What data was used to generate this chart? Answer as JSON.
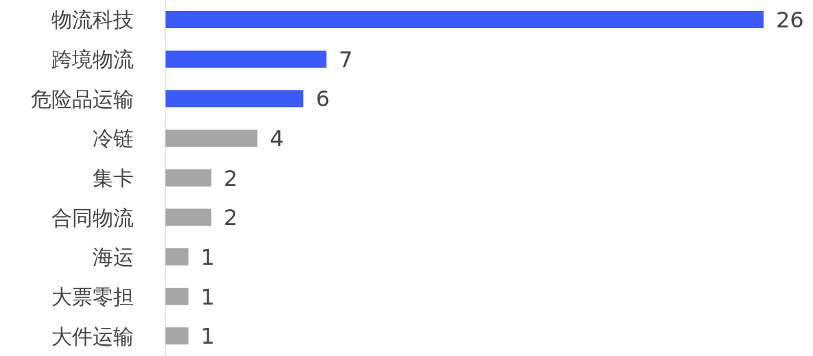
{
  "chart_data": {
    "type": "bar",
    "orientation": "horizontal",
    "data_labels": true,
    "categories": [
      "物流科技",
      "跨境物流",
      "危险品运输",
      "冷链",
      "集卡",
      "合同物流",
      "海运",
      "大票零担",
      "大件运输"
    ],
    "values": [
      26,
      7,
      6,
      4,
      2,
      2,
      1,
      1,
      1
    ],
    "colors": [
      "#3b5bfd",
      "#3b5bfd",
      "#3b5bfd",
      "#a6a6a6",
      "#a6a6a6",
      "#a6a6a6",
      "#a6a6a6",
      "#a6a6a6",
      "#a6a6a6"
    ],
    "grid": false,
    "legend": false
  }
}
